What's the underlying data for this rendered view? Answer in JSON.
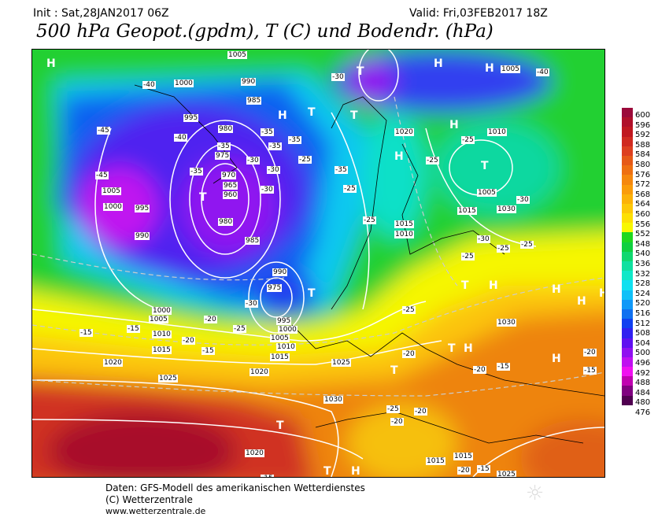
{
  "header": {
    "init": "Init : Sat,28JAN2017 06Z",
    "valid": "Valid: Fri,03FEB2017 18Z",
    "title": "500 hPa Geopot.(gpdm), T (C) und Bodendr. (hPa)"
  },
  "colorbar": {
    "labels": [
      "600",
      "596",
      "592",
      "588",
      "584",
      "580",
      "576",
      "572",
      "568",
      "564",
      "560",
      "556",
      "552",
      "548",
      "540",
      "536",
      "532",
      "528",
      "524",
      "520",
      "516",
      "512",
      "508",
      "504",
      "500",
      "496",
      "492",
      "488",
      "484",
      "480",
      "476"
    ],
    "colors": [
      "#9b0a3a",
      "#b0102a",
      "#c01820",
      "#d02a20",
      "#dd4020",
      "#e65a18",
      "#ee7012",
      "#f5880e",
      "#fa9c0a",
      "#fcb208",
      "#fdc808",
      "#fde004",
      "#f8f800",
      "#20d820",
      "#10d040",
      "#10d870",
      "#10e0a0",
      "#10e8c8",
      "#10e0f0",
      "#10c0f8",
      "#1098f8",
      "#1070f0",
      "#1040f0",
      "#3020f0",
      "#6010f0",
      "#9010f0",
      "#c010f0",
      "#f010f0",
      "#c000b0",
      "#800080",
      "#500050"
    ]
  },
  "map": {
    "pressure_labels": [
      "1005",
      "1000",
      "990",
      "985",
      "980",
      "975",
      "970",
      "965",
      "960",
      "995",
      "1005",
      "1000",
      "995",
      "990",
      "985",
      "980",
      "975",
      "990",
      "995",
      "1000",
      "1005",
      "1010",
      "1015",
      "1000",
      "1005",
      "1010",
      "1015",
      "1020",
      "1025",
      "1020",
      "1025",
      "1030",
      "1030",
      "1015",
      "1015",
      "1010",
      "1005",
      "1020",
      "1015",
      "1010",
      "1005",
      "1030",
      "1025",
      "1020",
      "1015"
    ],
    "temperature_labels": [
      "-40",
      "-45",
      "-40",
      "-40",
      "-35",
      "-35",
      "-35",
      "-30",
      "-35",
      "-30",
      "-25",
      "-30",
      "-35",
      "-30",
      "-25",
      "-25",
      "-25",
      "-30",
      "-25",
      "-25",
      "-30",
      "-25",
      "-20",
      "-15",
      "-15",
      "-20",
      "-15",
      "-20",
      "-20",
      "-15",
      "-20",
      "-15",
      "-25",
      "-20",
      "-15",
      "-20",
      "-15",
      "-25",
      "-30",
      "-35",
      "-25",
      "-20",
      "-25",
      "-45"
    ],
    "centers": [
      "H",
      "H",
      "H",
      "T",
      "T",
      "H",
      "T",
      "H",
      "H",
      "T",
      "T",
      "H",
      "T",
      "H",
      "H",
      "T",
      "H",
      "H",
      "T",
      "T",
      "H",
      "T",
      "T",
      "H"
    ]
  },
  "footer": {
    "line1": "Daten: GFS-Modell des amerikanischen Wetterdienstes",
    "line2": "(C) Wetterzentrale",
    "line3": "www.wetterzentrale.de",
    "logo": "sun-logo"
  }
}
